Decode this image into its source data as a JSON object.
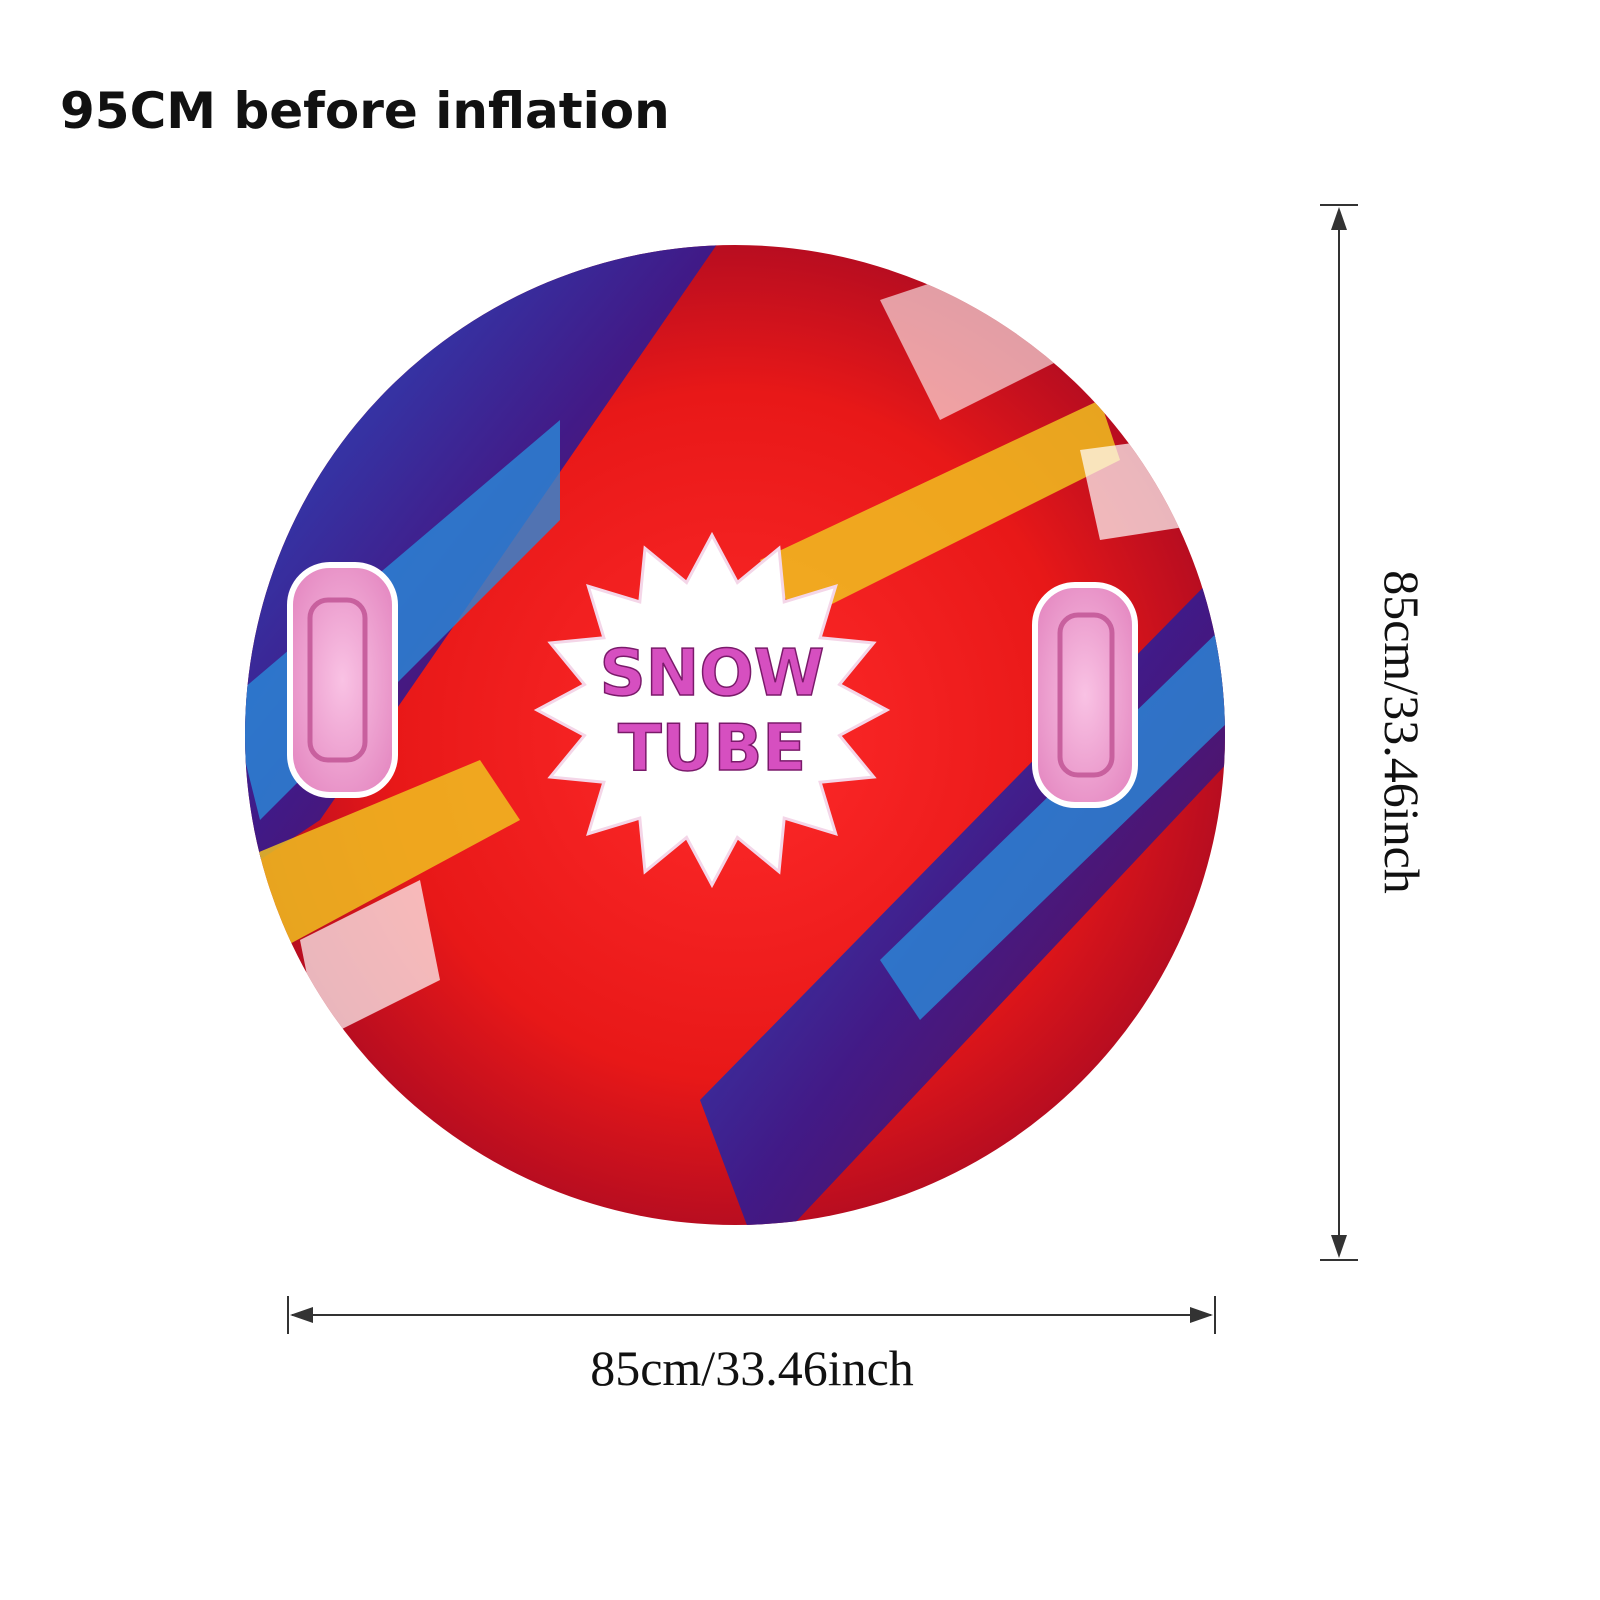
{
  "header": {
    "title": "95CM before inflation"
  },
  "product": {
    "label_line1": "SNOW",
    "label_line2": "TUBE"
  },
  "dimensions": {
    "height": "85cm/33.46inch",
    "width": "85cm/33.46inch"
  }
}
